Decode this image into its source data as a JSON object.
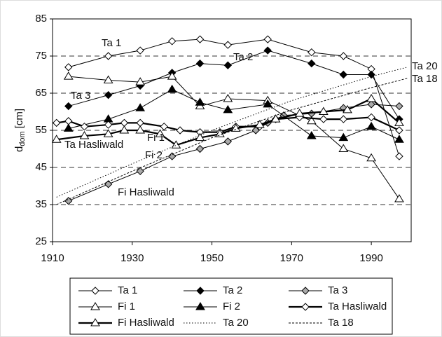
{
  "chart_data": {
    "type": "line",
    "y_label": [
      "d",
      "dom",
      "[cm]"
    ],
    "xlim": [
      1910,
      2000
    ],
    "xticks": [
      1910,
      1930,
      1950,
      1970,
      1990
    ],
    "ylim": [
      25,
      85
    ],
    "yticks": [
      25,
      35,
      45,
      55,
      65,
      75,
      85
    ],
    "grid": "dashed",
    "legend": "bottom",
    "series": [
      {
        "name": "Ta 1",
        "color": "#000000",
        "marker": "diamond-open",
        "line_width": 1,
        "x": [
          1914,
          1924,
          1932,
          1940,
          1947,
          1954,
          1964,
          1975,
          1983,
          1990,
          1997
        ],
        "values": [
          72,
          75,
          76.5,
          79,
          79.5,
          78,
          79.5,
          76,
          75,
          71.5,
          48
        ]
      },
      {
        "name": "Ta 2",
        "color": "#000000",
        "marker": "diamond-filled",
        "line_width": 1,
        "x": [
          1914,
          1924,
          1932,
          1940,
          1947,
          1954,
          1964,
          1975,
          1983,
          1990,
          1997
        ],
        "values": [
          61.5,
          64.5,
          67,
          70.5,
          73,
          72.5,
          76.5,
          73,
          70,
          70,
          58
        ]
      },
      {
        "name": "Ta 3",
        "color": "#000000",
        "marker": "diamond-grey",
        "line_width": 1,
        "x": [
          1914,
          1924,
          1932,
          1940,
          1947,
          1954,
          1961,
          1964,
          1968,
          1975,
          1983,
          1990,
          1997
        ],
        "values": [
          36,
          40.5,
          44,
          48,
          50,
          52,
          55,
          57,
          59,
          59.5,
          61,
          62,
          61.5
        ]
      },
      {
        "name": "Fi 1",
        "color": "#000000",
        "marker": "triangle-open",
        "line_width": 1,
        "x": [
          1914,
          1924,
          1932,
          1940,
          1947,
          1954,
          1964,
          1975,
          1983,
          1990,
          1997
        ],
        "values": [
          69.5,
          68.5,
          68,
          69.5,
          61.5,
          63.5,
          63,
          57.5,
          50,
          47.5,
          36.5
        ]
      },
      {
        "name": "Fi 2",
        "color": "#000000",
        "marker": "triangle-filled",
        "line_width": 1,
        "x": [
          1914,
          1924,
          1932,
          1940,
          1947,
          1954,
          1964,
          1975,
          1983,
          1990,
          1997
        ],
        "values": [
          55.5,
          58,
          61,
          66,
          62.5,
          60.5,
          62,
          53.5,
          53,
          56,
          52.5
        ]
      },
      {
        "name": "Ta Hasliwald",
        "color": "#000000",
        "marker": "diamond-open",
        "line_width": 2.2,
        "x": [
          1911,
          1914,
          1918,
          1924,
          1928,
          1932,
          1938,
          1942,
          1947,
          1952,
          1956,
          1962,
          1966,
          1972,
          1978,
          1983,
          1990,
          1997
        ],
        "values": [
          57,
          57.5,
          56,
          56.5,
          57,
          57,
          56,
          55,
          54.5,
          54.5,
          56,
          56,
          58,
          58.5,
          58,
          58,
          58.5,
          55
        ]
      },
      {
        "name": "Fi Hasliwald",
        "color": "#000000",
        "marker": "triangle-open",
        "line_width": 2.2,
        "x": [
          1911,
          1918,
          1924,
          1928,
          1932,
          1937,
          1941,
          1947,
          1952,
          1956,
          1962,
          1966,
          1972,
          1978,
          1984,
          1990,
          1997
        ],
        "values": [
          52.5,
          53.5,
          54,
          55,
          55,
          54,
          51,
          53,
          54,
          55.5,
          56.5,
          58,
          59.5,
          60,
          60.5,
          63.5,
          57
        ]
      },
      {
        "name": "Ta 20",
        "color": "#000000",
        "marker": "none",
        "line_width": 1,
        "dash": "1.5,2.5",
        "x": [
          1911,
          1930,
          1950,
          1970,
          1990,
          1999
        ],
        "values": [
          37,
          46,
          55,
          63,
          69.5,
          72
        ]
      },
      {
        "name": "Ta 18",
        "color": "#000000",
        "marker": "none",
        "line_width": 1,
        "dash": "3,2",
        "x": [
          1911,
          1930,
          1950,
          1970,
          1990,
          1999
        ],
        "values": [
          35,
          44,
          53,
          60.5,
          66.5,
          69
        ]
      }
    ]
  }
}
